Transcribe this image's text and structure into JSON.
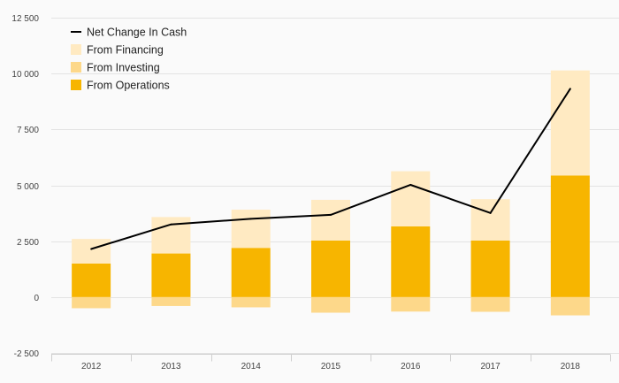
{
  "chart_data": {
    "type": "bar",
    "subtype": "stacked-bar-with-line",
    "categories": [
      "2012",
      "2013",
      "2014",
      "2015",
      "2016",
      "2017",
      "2018"
    ],
    "series": [
      {
        "name": "From Operations",
        "kind": "bar",
        "color": "#f7b500",
        "values": [
          1500,
          1950,
          2200,
          2530,
          3160,
          2530,
          5440
        ]
      },
      {
        "name": "From Investing",
        "kind": "bar",
        "color": "#fdd88a",
        "values": [
          -500,
          -400,
          -460,
          -700,
          -650,
          -660,
          -820
        ]
      },
      {
        "name": "From Financing",
        "kind": "bar",
        "color": "#ffeac2",
        "values": [
          1100,
          1630,
          1710,
          1820,
          2470,
          1850,
          4700
        ]
      },
      {
        "name": "Net Change In Cash",
        "kind": "line",
        "color": "#000000",
        "values": [
          2150,
          3250,
          3500,
          3680,
          5020,
          3760,
          9320
        ]
      }
    ],
    "legend_order": [
      "Net Change In Cash",
      "From Financing",
      "From Investing",
      "From Operations"
    ],
    "legend_position": "top-left",
    "y_ticks": [
      "-2 500",
      "0",
      "2 500",
      "5 000",
      "7 500",
      "10 000",
      "12 500"
    ],
    "y_tick_values": [
      -2500,
      0,
      2500,
      5000,
      7500,
      10000,
      12500
    ],
    "ylim": [
      -2500,
      12500
    ],
    "title": "",
    "xlabel": "",
    "ylabel": "",
    "grid": true
  }
}
